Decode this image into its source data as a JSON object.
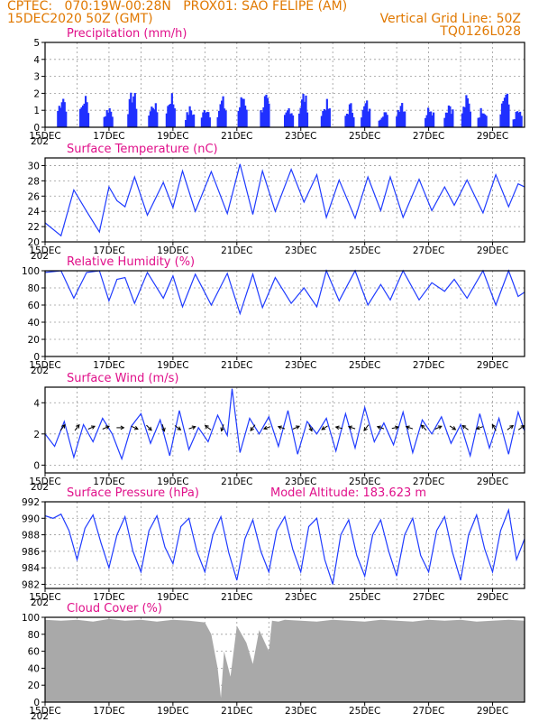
{
  "header": {
    "line1": "CPTEC:   070:19W-00:28N   PROX01: SAO FELIPE (AM)",
    "line2_left": "15DEC2020 50Z (GMT)",
    "line2_right": "Vertical Grid Line: 50Z",
    "line3_right": "TQ0126L028"
  },
  "colors": {
    "header": "#e07800",
    "title": "#e0108a",
    "series": "#1f3bff",
    "bars": "#2030ff",
    "cloud": "#a9a9a9"
  },
  "x_ticks": [
    "15DEC",
    "17DEC",
    "19DEC",
    "21DEC",
    "23DEC",
    "25DEC",
    "27DEC",
    "29DEC"
  ],
  "x_partial_label": "202",
  "chart_data": [
    {
      "type": "bar",
      "title": "Precipitation (mm/h)",
      "ylim": [
        0,
        5
      ],
      "yticks": [
        0,
        1,
        2,
        3,
        4,
        5
      ],
      "x_days": [
        0,
        15
      ],
      "bursts": [
        {
          "day": 0.55,
          "peak": 2.4
        },
        {
          "day": 1.25,
          "peak": 2.2
        },
        {
          "day": 2.0,
          "peak": 1.5
        },
        {
          "day": 2.75,
          "peak": 2.6
        },
        {
          "day": 3.4,
          "peak": 1.8
        },
        {
          "day": 3.95,
          "peak": 2.4
        },
        {
          "day": 4.55,
          "peak": 1.4
        },
        {
          "day": 5.05,
          "peak": 1.5
        },
        {
          "day": 5.55,
          "peak": 2.0
        },
        {
          "day": 6.2,
          "peak": 2.4
        },
        {
          "day": 6.9,
          "peak": 2.2
        },
        {
          "day": 7.65,
          "peak": 1.5
        },
        {
          "day": 8.1,
          "peak": 2.4
        },
        {
          "day": 8.8,
          "peak": 1.8
        },
        {
          "day": 9.55,
          "peak": 1.6
        },
        {
          "day": 10.05,
          "peak": 1.8
        },
        {
          "day": 10.6,
          "peak": 1.2
        },
        {
          "day": 11.15,
          "peak": 2.0
        },
        {
          "day": 12.05,
          "peak": 1.6
        },
        {
          "day": 12.65,
          "peak": 1.8
        },
        {
          "day": 13.2,
          "peak": 2.1
        },
        {
          "day": 13.7,
          "peak": 1.5
        },
        {
          "day": 14.4,
          "peak": 2.6
        },
        {
          "day": 14.8,
          "peak": 1.2
        }
      ]
    },
    {
      "type": "line",
      "title": "Surface Temperature (nC)",
      "ylim": [
        20,
        31
      ],
      "yticks": [
        20,
        22,
        24,
        26,
        28,
        30
      ],
      "x": [
        0,
        0.5,
        0.9,
        1.3,
        1.7,
        2.0,
        2.25,
        2.5,
        2.8,
        3.2,
        3.7,
        4.0,
        4.3,
        4.7,
        5.2,
        5.7,
        6.1,
        6.5,
        6.8,
        7.2,
        7.7,
        8.1,
        8.5,
        8.8,
        9.2,
        9.7,
        10.1,
        10.5,
        10.8,
        11.2,
        11.7,
        12.1,
        12.5,
        12.8,
        13.2,
        13.7,
        14.1,
        14.5,
        14.8,
        15.0
      ],
      "y": [
        22.5,
        20.8,
        26.8,
        24.0,
        21.3,
        27.2,
        25.4,
        24.6,
        28.5,
        23.5,
        27.8,
        24.5,
        29.3,
        24.0,
        29.2,
        23.7,
        30.2,
        23.6,
        29.3,
        24.0,
        29.5,
        25.2,
        28.8,
        23.2,
        28.1,
        23.1,
        28.5,
        24.1,
        28.5,
        23.2,
        28.2,
        24.1,
        27.2,
        24.8,
        28.1,
        23.8,
        28.8,
        24.6,
        27.6,
        27.2
      ]
    },
    {
      "type": "line",
      "title": "Relative Humidity (%)",
      "ylim": [
        0,
        100
      ],
      "yticks": [
        0,
        20,
        40,
        60,
        80,
        100
      ],
      "x": [
        0,
        0.5,
        0.9,
        1.3,
        1.7,
        2.0,
        2.25,
        2.5,
        2.8,
        3.2,
        3.7,
        4.0,
        4.3,
        4.7,
        5.2,
        5.7,
        6.1,
        6.5,
        6.8,
        7.2,
        7.7,
        8.1,
        8.5,
        8.8,
        9.2,
        9.7,
        10.1,
        10.5,
        10.8,
        11.2,
        11.7,
        12.1,
        12.5,
        12.8,
        13.2,
        13.7,
        14.1,
        14.5,
        14.8,
        15.0
      ],
      "y": [
        98,
        100,
        68,
        98,
        100,
        65,
        90,
        92,
        62,
        98,
        68,
        94,
        58,
        96,
        60,
        97,
        50,
        96,
        57,
        92,
        62,
        80,
        58,
        100,
        65,
        100,
        60,
        84,
        66,
        100,
        66,
        86,
        76,
        90,
        68,
        100,
        60,
        100,
        70,
        75
      ]
    },
    {
      "type": "line",
      "title": "Surface Wind (m/s)",
      "ylim": [
        -0.5,
        5
      ],
      "yticks": [
        0,
        2,
        4
      ],
      "x": [
        0,
        0.3,
        0.6,
        0.9,
        1.2,
        1.5,
        1.8,
        2.1,
        2.4,
        2.7,
        3.0,
        3.3,
        3.6,
        3.9,
        4.2,
        4.5,
        4.8,
        5.1,
        5.4,
        5.7,
        5.85,
        6.1,
        6.4,
        6.7,
        7.0,
        7.3,
        7.6,
        7.9,
        8.2,
        8.5,
        8.8,
        9.1,
        9.4,
        9.7,
        10.0,
        10.3,
        10.6,
        10.9,
        11.2,
        11.5,
        11.8,
        12.1,
        12.4,
        12.7,
        13.0,
        13.3,
        13.6,
        13.9,
        14.2,
        14.5,
        14.8,
        15.0
      ],
      "y": [
        2.0,
        1.2,
        2.8,
        0.5,
        2.6,
        1.5,
        3.0,
        2.0,
        0.4,
        2.5,
        3.3,
        1.4,
        2.9,
        0.6,
        3.5,
        1.0,
        2.4,
        1.5,
        3.2,
        1.9,
        4.9,
        0.8,
        3.0,
        2.0,
        3.1,
        1.2,
        3.5,
        0.7,
        2.8,
        2.0,
        3.0,
        0.9,
        3.3,
        1.1,
        3.7,
        1.5,
        2.7,
        1.3,
        3.4,
        0.8,
        2.9,
        2.0,
        3.1,
        1.4,
        2.6,
        0.6,
        3.3,
        1.1,
        3.0,
        0.7,
        3.4,
        2.2
      ],
      "arrows": [
        {
          "day": 0.55,
          "u": 0.6,
          "v": 0.8
        },
        {
          "day": 1.0,
          "u": 0.6,
          "v": 0.8
        },
        {
          "day": 1.45,
          "u": 0.9,
          "v": 0.4
        },
        {
          "day": 1.9,
          "u": 0.9,
          "v": 0.4
        },
        {
          "day": 2.35,
          "u": 1.0,
          "v": 0.0
        },
        {
          "day": 2.8,
          "u": 0.9,
          "v": -0.4
        },
        {
          "day": 3.25,
          "u": 0.7,
          "v": -0.7
        },
        {
          "day": 3.7,
          "u": 0.3,
          "v": -0.95
        },
        {
          "day": 4.15,
          "u": 0.8,
          "v": -0.6
        },
        {
          "day": 4.6,
          "u": 0.9,
          "v": 0.3
        },
        {
          "day": 5.1,
          "u": -0.8,
          "v": 0.6
        },
        {
          "day": 5.55,
          "u": -0.3,
          "v": -0.9
        },
        {
          "day": 6.5,
          "u": -0.6,
          "v": -0.8
        },
        {
          "day": 6.95,
          "u": -0.9,
          "v": -0.3
        },
        {
          "day": 7.4,
          "u": -0.9,
          "v": 0.3
        },
        {
          "day": 7.85,
          "u": 0.9,
          "v": 0.4
        },
        {
          "day": 8.3,
          "u": 0.4,
          "v": -0.9
        },
        {
          "day": 8.75,
          "u": -0.8,
          "v": -0.5
        },
        {
          "day": 9.2,
          "u": -0.9,
          "v": 0.2
        },
        {
          "day": 9.6,
          "u": -0.9,
          "v": 0.3
        },
        {
          "day": 10.05,
          "u": -0.6,
          "v": -0.8
        },
        {
          "day": 10.5,
          "u": -0.9,
          "v": 0.3
        },
        {
          "day": 10.95,
          "u": 0.9,
          "v": 0.2
        },
        {
          "day": 11.4,
          "u": -0.9,
          "v": 0.3
        },
        {
          "day": 11.85,
          "u": -0.7,
          "v": 0.7
        },
        {
          "day": 12.3,
          "u": 0.9,
          "v": 0.4
        },
        {
          "day": 12.75,
          "u": 0.8,
          "v": -0.5
        },
        {
          "day": 13.15,
          "u": -0.8,
          "v": 0.6
        },
        {
          "day": 13.6,
          "u": -0.9,
          "v": -0.3
        },
        {
          "day": 14.05,
          "u": -0.5,
          "v": 0.85
        },
        {
          "day": 14.55,
          "u": 0.8,
          "v": 0.6
        },
        {
          "day": 14.9,
          "u": 0.8,
          "v": 0.6
        }
      ]
    },
    {
      "type": "line",
      "title": "Surface Pressure (hPa)",
      "annotation": "Model Altitude: 183.623  m",
      "ylim": [
        981.5,
        992
      ],
      "yticks": [
        982,
        984,
        986,
        988,
        990,
        992
      ],
      "x": [
        0,
        0.25,
        0.5,
        0.75,
        1.0,
        1.25,
        1.5,
        1.75,
        2.0,
        2.25,
        2.5,
        2.75,
        3.0,
        3.25,
        3.5,
        3.75,
        4.0,
        4.25,
        4.5,
        4.75,
        5.0,
        5.25,
        5.5,
        5.75,
        6.0,
        6.25,
        6.5,
        6.75,
        7.0,
        7.25,
        7.5,
        7.75,
        8.0,
        8.25,
        8.5,
        8.75,
        9.0,
        9.25,
        9.5,
        9.75,
        10.0,
        10.25,
        10.5,
        10.75,
        11.0,
        11.25,
        11.5,
        11.75,
        12.0,
        12.25,
        12.5,
        12.75,
        13.0,
        13.25,
        13.5,
        13.75,
        14.0,
        14.25,
        14.5,
        14.75,
        15.0
      ],
      "y": [
        990.3,
        990.0,
        990.5,
        988.5,
        985.0,
        988.8,
        990.4,
        987.0,
        984.0,
        988.0,
        990.2,
        986.0,
        983.5,
        988.5,
        990.3,
        986.5,
        984.5,
        989.0,
        990.0,
        986.0,
        983.5,
        988.0,
        990.2,
        985.8,
        982.5,
        987.5,
        989.8,
        986.0,
        983.5,
        988.5,
        990.2,
        986.2,
        983.5,
        989.0,
        990.0,
        985.0,
        982.0,
        988.0,
        989.8,
        985.5,
        983.0,
        988.0,
        989.8,
        986.0,
        983.0,
        988.0,
        990.0,
        985.5,
        983.5,
        988.5,
        990.2,
        985.8,
        982.5,
        988.0,
        990.4,
        986.3,
        983.5,
        988.5,
        991.0,
        985.0,
        987.5
      ]
    },
    {
      "type": "area",
      "title": "Cloud Cover (%)",
      "ylim": [
        0,
        100
      ],
      "yticks": [
        0,
        20,
        40,
        60,
        80,
        100
      ],
      "x": [
        0,
        0.5,
        1.0,
        1.5,
        2.0,
        2.5,
        3.0,
        3.5,
        4.0,
        4.5,
        5.0,
        5.2,
        5.4,
        5.5,
        5.6,
        5.8,
        6.0,
        6.3,
        6.5,
        6.7,
        7.0,
        7.1,
        7.3,
        7.5,
        8.0,
        8.5,
        9.0,
        9.5,
        10.0,
        10.5,
        11.0,
        11.5,
        12.0,
        12.5,
        13.0,
        13.5,
        14.0,
        14.5,
        15.0
      ],
      "y": [
        97,
        96,
        97,
        95,
        98,
        96,
        97,
        95,
        97,
        96,
        94,
        80,
        40,
        5,
        60,
        30,
        90,
        70,
        45,
        85,
        60,
        96,
        95,
        97,
        96,
        95,
        97,
        96,
        95,
        97,
        96,
        95,
        97,
        96,
        97,
        95,
        96,
        97,
        96
      ]
    }
  ]
}
